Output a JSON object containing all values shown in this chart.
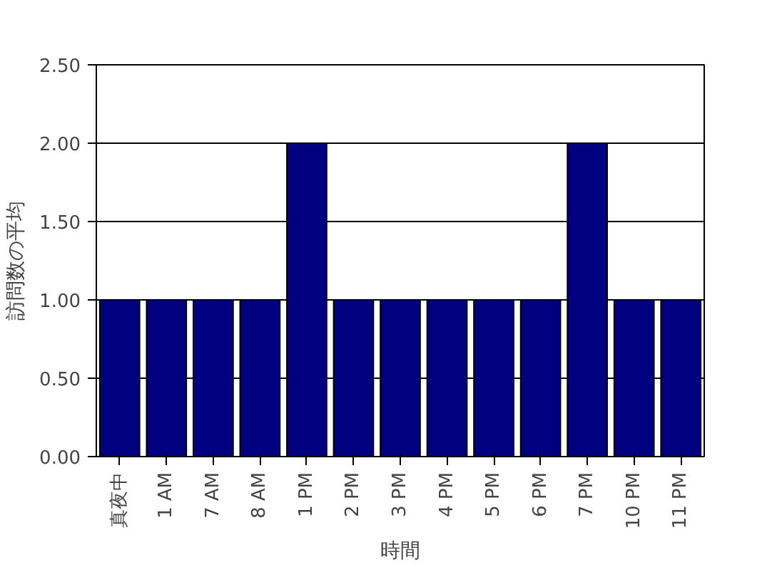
{
  "chart_data": {
    "type": "bar",
    "xlabel": "時間",
    "ylabel": "訪問数の平均",
    "categories": [
      "真夜中",
      "1 AM",
      "7 AM",
      "8 AM",
      "1 PM",
      "2 PM",
      "3 PM",
      "4 PM",
      "5 PM",
      "6 PM",
      "7 PM",
      "10 PM",
      "11 PM"
    ],
    "values": [
      1,
      1,
      1,
      1,
      2,
      1,
      1,
      1,
      1,
      1,
      2,
      1,
      1
    ],
    "color": "#000080",
    "ylim": [
      0,
      2.5
    ],
    "yticks": [
      {
        "value": 0,
        "label": "0.00"
      },
      {
        "value": 0.5,
        "label": "0.50"
      },
      {
        "value": 1,
        "label": "1.00"
      },
      {
        "value": 1.5,
        "label": "1.50"
      },
      {
        "value": 2,
        "label": "2.00"
      },
      {
        "value": 2.5,
        "label": "2.50"
      }
    ],
    "grid": "y"
  }
}
